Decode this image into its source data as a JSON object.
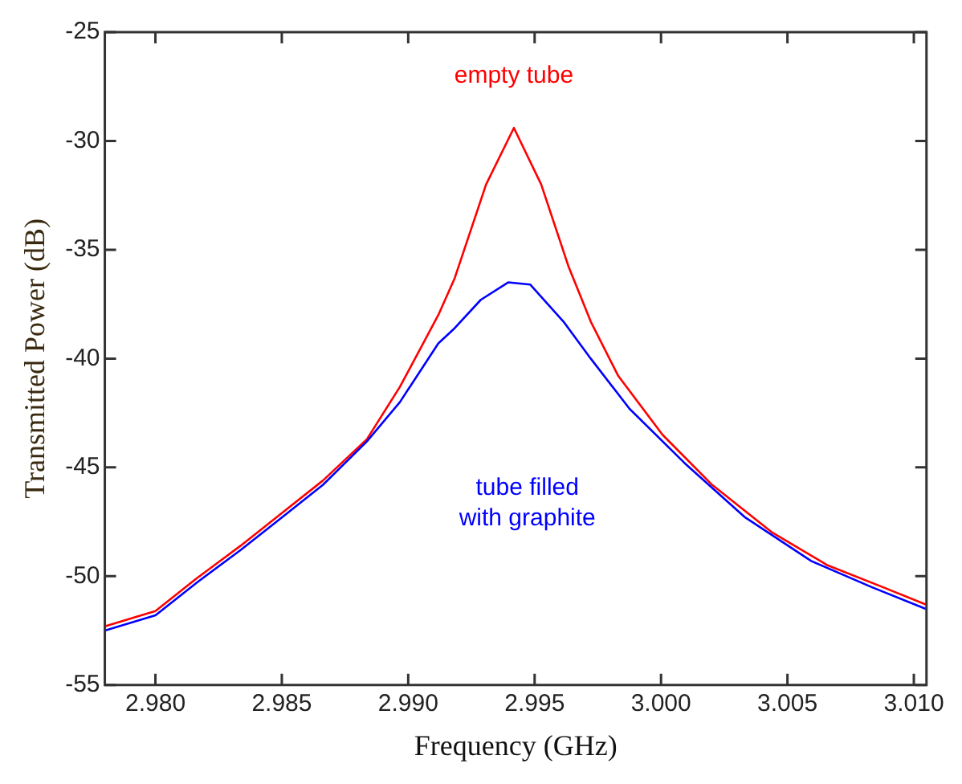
{
  "chart_data": {
    "type": "line",
    "xlabel": "Frequency (GHz)",
    "ylabel": "Transmitted Power (dB)",
    "xlim": [
      2.978,
      3.0105
    ],
    "xticks": [
      {
        "value": 2.98,
        "label": "2.980"
      },
      {
        "value": 2.985,
        "label": "2.985"
      },
      {
        "value": 2.99,
        "label": "2.990"
      },
      {
        "value": 2.995,
        "label": "2.995"
      },
      {
        "value": 3.0,
        "label": "3.000"
      },
      {
        "value": 3.005,
        "label": "3.005"
      },
      {
        "value": 3.01,
        "label": "3.010"
      }
    ],
    "ylim": [
      -55,
      -25
    ],
    "yticks": [
      -55,
      -50,
      -45,
      -40,
      -35,
      -30,
      -25
    ],
    "grid": false,
    "legend": false,
    "marker": "none",
    "line_style": "solid",
    "series": [
      {
        "name": "empty tube",
        "color": "#ff0000",
        "x": [
          2.978,
          2.98,
          2.98163,
          2.98337,
          2.985,
          2.98663,
          2.98837,
          2.98967,
          2.99119,
          2.99184,
          2.99308,
          2.99418,
          2.99526,
          2.99635,
          2.99722,
          2.99831,
          3.00006,
          3.00202,
          3.00441,
          3.00659,
          3.00877,
          3.01047
        ],
        "values": [
          -52.3,
          -51.6,
          -50.1,
          -48.6,
          -47.1,
          -45.6,
          -43.7,
          -41.3,
          -38.0,
          -36.3,
          -32.0,
          -29.4,
          -32.0,
          -35.8,
          -38.3,
          -40.8,
          -43.5,
          -45.8,
          -48.0,
          -49.5,
          -50.5,
          -51.3
        ]
      },
      {
        "name": "tube filled with graphite",
        "color": "#0000ff",
        "x": [
          2.978,
          2.98,
          2.98163,
          2.98337,
          2.985,
          2.98663,
          2.98837,
          2.98967,
          2.99119,
          2.99184,
          2.99287,
          2.99395,
          2.99483,
          2.99614,
          2.99722,
          2.99875,
          3.00093,
          3.00333,
          3.00594,
          3.00833,
          3.01047
        ],
        "values": [
          -52.5,
          -51.8,
          -50.3,
          -48.8,
          -47.3,
          -45.8,
          -43.8,
          -42.0,
          -39.3,
          -38.6,
          -37.3,
          -36.5,
          -36.6,
          -38.3,
          -40.0,
          -42.3,
          -44.8,
          -47.3,
          -49.3,
          -50.5,
          -51.5
        ]
      }
    ]
  }
}
